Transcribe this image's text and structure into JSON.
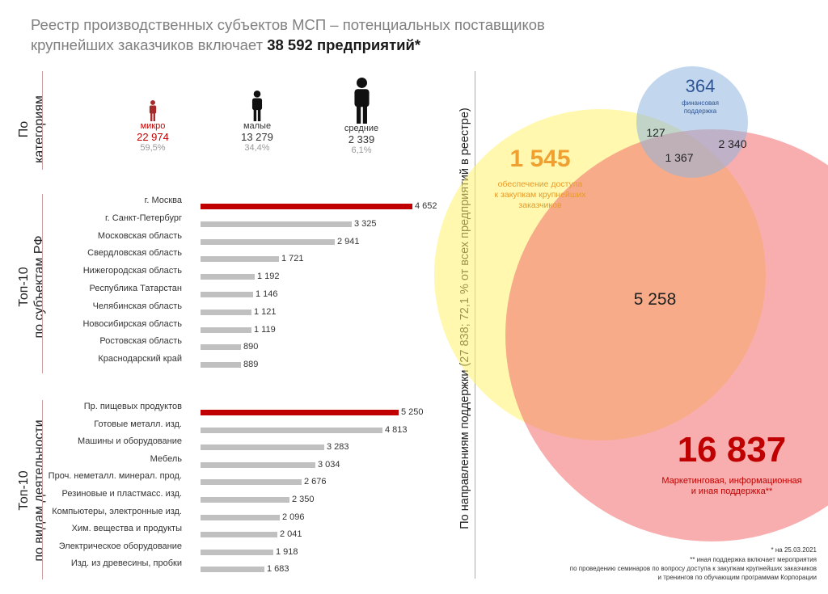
{
  "title": {
    "prefix": "Реестр производственных субъектов МСП – потенциальных поставщиков крупнейших заказчиков включает ",
    "highlight": "38 592 предприятий*"
  },
  "section_labels": {
    "categories_line1": "По",
    "categories_line2": "категориям",
    "regions_line1": "Топ-10",
    "regions_line2": "по субъектам РФ",
    "industries_line1": "Топ-10",
    "industries_line2": "по видам деятельности",
    "support": "По направлениям поддержки (27 838; 72,1 % от всех предприятий в реестре)"
  },
  "categories": [
    {
      "name": "микро",
      "count": "22 974",
      "share": "59,5%",
      "color": "#a52a2a",
      "icon": "person-icon"
    },
    {
      "name": "малые",
      "count": "13 279",
      "share": "34,4%",
      "color": "#111111",
      "icon": "person-icon"
    },
    {
      "name": "средние",
      "count": "2 339",
      "share": "6,1%",
      "color": "#111111",
      "icon": "person-icon"
    }
  ],
  "chart_data": [
    {
      "type": "bar",
      "orientation": "horizontal",
      "categories": [
        "г. Москва",
        "г. Санкт-Петербург",
        "Московская область",
        "Свердловская область",
        "Нижегородская область",
        "Республика Татарстан",
        "Челябинская область",
        "Новосибирская область",
        "Ростовская область",
        "Краснодарский край"
      ],
      "values": [
        4652,
        3325,
        2941,
        1721,
        1192,
        1146,
        1121,
        1119,
        890,
        889
      ],
      "labels": [
        "4 652",
        "3 325",
        "2 941",
        "1 721",
        "1 192",
        "1 146",
        "1 121",
        "1 119",
        "890",
        "889"
      ],
      "highlight_color": "#c00000",
      "bar_color": "#c0c0c0"
    },
    {
      "type": "bar",
      "orientation": "horizontal",
      "categories": [
        "Пр. пищевых продуктов",
        "Готовые металл. изд.",
        "Машины и оборудование",
        "Мебель",
        "Проч. неметалл. минерал. прод.",
        "Резиновые и пластмасс. изд.",
        "Компьютеры, электронные изд.",
        "Хим. вещества и продукты",
        "Электрическое оборудование",
        "Изд. из древесины, пробки"
      ],
      "values": [
        5250,
        4813,
        3283,
        3034,
        2676,
        2350,
        2096,
        2041,
        1918,
        1683
      ],
      "labels": [
        "5 250",
        "4 813",
        "3 283",
        "3 034",
        "2 676",
        "2 350",
        "2 096",
        "2 041",
        "1 918",
        "1 683"
      ],
      "highlight_color": "#c00000",
      "bar_color": "#c0c0c0"
    },
    {
      "type": "venn",
      "sets": [
        {
          "name": "обеспечение доступа к закупкам крупнейших заказчиков",
          "only": "1 545",
          "color": "#fff36b"
        },
        {
          "name": "финансовая поддержка",
          "only": "364",
          "color": "#a9c5e6"
        },
        {
          "name": "Маркетинговая, информационная и иная поддержка**",
          "only": "16 837",
          "color": "#f46a6a"
        }
      ],
      "intersections": [
        {
          "sets": [
            "доступ",
            "финансовая"
          ],
          "value": "127"
        },
        {
          "sets": [
            "доступ",
            "финансовая",
            "маркетинговая"
          ],
          "value": "1 367"
        },
        {
          "sets": [
            "финансовая",
            "маркетинговая"
          ],
          "value": "2 340"
        },
        {
          "sets": [
            "доступ",
            "маркетинговая"
          ],
          "value": "5 258"
        }
      ]
    }
  ],
  "venn_labels": {
    "access_value": "1 545",
    "access_text1": "обеспечение доступа",
    "access_text2": "к закупкам крупнейших",
    "access_text3": "заказчиков",
    "fin_value": "364",
    "fin_text1": "финансовая",
    "fin_text2": "поддержка",
    "int_access_fin": "127",
    "int_all": "1 367",
    "int_fin_mkt": "2 340",
    "int_access_mkt": "5 258",
    "mkt_value": "16 837",
    "mkt_text1": "Маркетинговая, информационная",
    "mkt_text2": "и иная поддержка**"
  },
  "footnotes": {
    "line1": "* на 25.03.2021",
    "line2": "** иная поддержка включает мероприятия",
    "line3": "по проведению семинаров по вопросу доступа к закупкам крупнейших заказчиков",
    "line4": "и тренингов по обучающим программам Корпорации"
  },
  "colors": {
    "accent_red": "#c00000",
    "access_orange": "#f0a030",
    "fin_blue": "#2f5597",
    "mkt_red": "#c00000"
  }
}
